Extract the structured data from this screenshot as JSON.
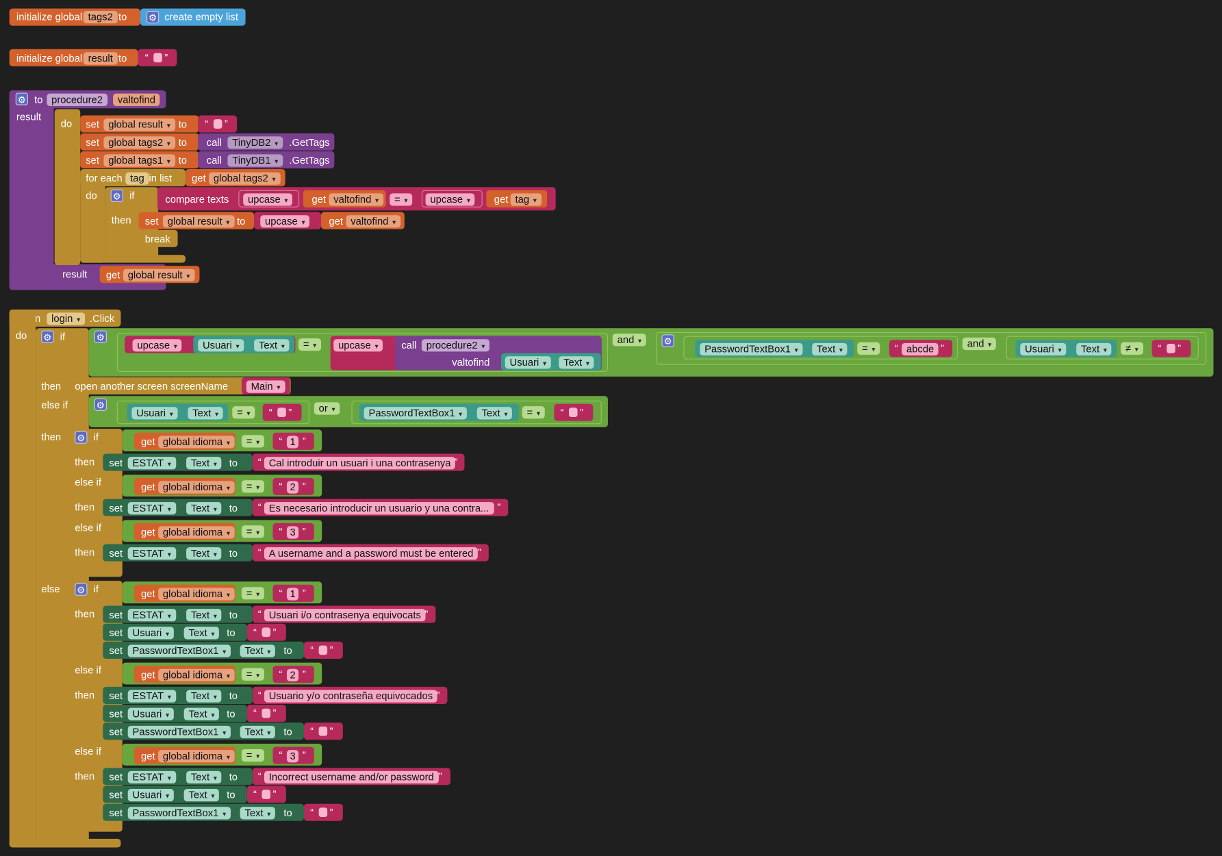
{
  "globals": {
    "tags2": {
      "kw1": "initialize global",
      "name": "tags2",
      "kw2": "to",
      "value": "create empty list"
    },
    "result": {
      "kw1": "initialize global",
      "name": "result",
      "kw2": "to"
    }
  },
  "procedure": {
    "kw_to": "to",
    "name": "procedure2",
    "param": "valtofind",
    "kw_result": "result",
    "kw_do": "do",
    "set": "set",
    "to": "to",
    "call": "call",
    "var_result": "global result",
    "var_tags2": "global tags2",
    "var_tags1": "global tags1",
    "tinydb2": "TinyDB2",
    "tinydb1": "TinyDB1",
    "gettags": ".GetTags",
    "for_each": "for each",
    "loop_var": "tag",
    "in_list": "in list",
    "get": "get",
    "kw_if": "if",
    "compare": "compare texts",
    "upcase": "upcase",
    "eq": "=",
    "valtofind": "valtofind",
    "tag": "tag",
    "then": "then",
    "break": "break",
    "get_result": "global result"
  },
  "event": {
    "when": "when",
    "component": "login",
    "event": ".Click",
    "do": "do",
    "if": "if",
    "upcase": "upcase",
    "usuari": "Usuari",
    "text": "Text",
    "eq": "=",
    "call": "call",
    "procedure": "procedure2",
    "param": "valtofind",
    "and": "and",
    "password": "PasswordTextBox1",
    "abcde": "abcde",
    "neq": "≠",
    "then": "then",
    "open_screen": "open another screen  screenName",
    "screen": "Main",
    "else_if": "else if",
    "or": "or",
    "else": "else",
    "get": "get",
    "idioma": "global idioma",
    "set": "set",
    "estat": "ESTAT",
    "to": "to",
    "n1": "1",
    "n2": "2",
    "n3": "3",
    "msg_ca_empty": "Cal introduir un usuari i una contrasenya",
    "msg_es_empty": "Es necesario introducir un usuario y una contra...",
    "msg_en_empty": "A username and a password must be entered",
    "msg_ca_wrong": "Usuari i/o contrasenya equivocats",
    "msg_es_wrong": "Usuario y/o contraseña equivocados",
    "msg_en_wrong": "Incorrect username and/or password"
  }
}
